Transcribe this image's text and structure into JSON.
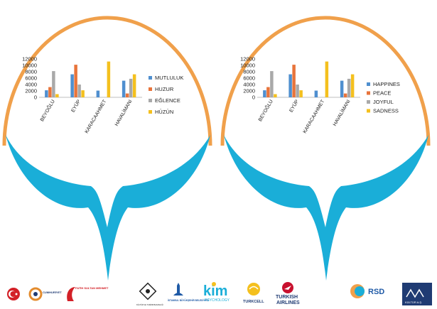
{
  "colors": {
    "arc": "#f0a04b",
    "bird": "#1aaed8",
    "series": [
      "#4f8fcf",
      "#e8743b",
      "#a9a9a9",
      "#f4c01e"
    ]
  },
  "chart_data": [
    {
      "type": "bar",
      "categories": [
        "BEYOĞLU",
        "EYÜP",
        "KARACAAHMET",
        "HAVALİMANI"
      ],
      "ylim": [
        0,
        12000
      ],
      "yticks": [
        "0",
        "2000",
        "4000",
        "6000",
        "8000",
        "10000",
        "12000"
      ],
      "grid": false,
      "legend_position": "right",
      "series": [
        {
          "name": "MUTLULUK",
          "values": [
            2200,
            7200,
            2100,
            5200
          ]
        },
        {
          "name": "HUZUR",
          "values": [
            3200,
            10200,
            0,
            1200
          ]
        },
        {
          "name": "EĞLENCE",
          "values": [
            8200,
            4000,
            0,
            5800
          ]
        },
        {
          "name": "HÜZÜN",
          "values": [
            1000,
            2200,
            11200,
            7200
          ]
        }
      ]
    },
    {
      "type": "bar",
      "categories": [
        "BEYOĞLU",
        "EYÜP",
        "KARACAAHMET",
        "HAVALİMANI"
      ],
      "ylim": [
        0,
        12000
      ],
      "yticks": [
        "0",
        "2000",
        "4000",
        "6000",
        "8000",
        "10000",
        "12000"
      ],
      "grid": false,
      "legend_position": "right",
      "series": [
        {
          "name": "HAPPINES",
          "values": [
            2200,
            7200,
            2100,
            5200
          ]
        },
        {
          "name": "PEACE",
          "values": [
            3200,
            10200,
            0,
            1200
          ]
        },
        {
          "name": "JOYFUL",
          "values": [
            8200,
            4000,
            0,
            5800
          ]
        },
        {
          "name": "SADNESS",
          "values": [
            1000,
            2200,
            11200,
            7200
          ]
        }
      ]
    }
  ],
  "logos": [
    {
      "icon": "tr-flag-emblem-icon"
    },
    {
      "icon": "circle-logo-icon",
      "text": "CUMHURİYET"
    },
    {
      "icon": "fatih-logo-icon",
      "text": "FATİH SULTAN MEHMET"
    },
    {
      "icon": "ministry-emblem-icon",
      "text": "KÜLTÜR VE TURİZM BAKANLIĞI"
    },
    {
      "icon": "ibb-logo-icon",
      "text": "İSTANBUL BÜYÜKŞEHİR BELEDİYESİ"
    },
    {
      "icon": "kim-logo-icon",
      "text": "kim",
      "sub": "PSYCHOLOGY"
    },
    {
      "icon": "turkcell-logo-icon",
      "text": "TURKCELL"
    },
    {
      "icon": "turkish-airlines-logo-icon",
      "text": "TURKISH",
      "sub": "AIRLINES"
    },
    {
      "icon": "rsd-logo-icon",
      "text": "RSD"
    },
    {
      "icon": "kultur-as-logo-icon",
      "text": "KÜLTÜR A.Ş."
    }
  ]
}
